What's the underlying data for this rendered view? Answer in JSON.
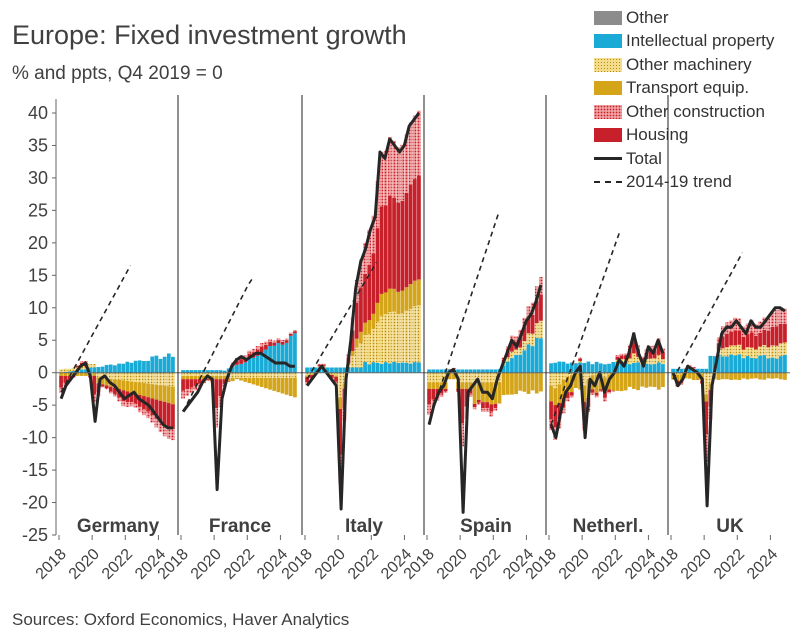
{
  "chart_data": {
    "type": "bar",
    "title": "Europe: Fixed investment growth",
    "subtitle": "% and ppts, Q4 2019 = 0",
    "source": "Sources: Oxford Economics, Haver Analytics",
    "ylim": [
      -25,
      40
    ],
    "yticks": [
      40,
      35,
      30,
      25,
      20,
      15,
      10,
      5,
      0,
      -5,
      -10,
      -15,
      -20,
      -25
    ],
    "xticks": [
      "2018",
      "2020",
      "2022",
      "2024"
    ],
    "legend": [
      {
        "name": "Other",
        "color": "#8c8c8c",
        "style": "solid"
      },
      {
        "name": "Intellectual property",
        "color": "#1aaad6",
        "style": "solid"
      },
      {
        "name": "Other machinery",
        "color": "#e4b52a",
        "style": "dotted"
      },
      {
        "name": "Transport equip.",
        "color": "#d4a419",
        "style": "solid"
      },
      {
        "name": "Other construction",
        "color": "#c8202a",
        "style": "dotted"
      },
      {
        "name": "Housing",
        "color": "#c8202a",
        "style": "solid"
      },
      {
        "name": "Total",
        "color": "#262626",
        "style": "line"
      },
      {
        "name": "2014-19 trend",
        "color": "#262626",
        "style": "dashed"
      }
    ],
    "panels": [
      {
        "name": "Germany",
        "total": [
          -4,
          -2,
          -1,
          0,
          1,
          1.5,
          -0.5,
          -7.5,
          -1,
          -0.5,
          -1.5,
          -2,
          -3,
          -4,
          -3.5,
          -3,
          -4,
          -4.5,
          -5,
          -6,
          -7,
          -8,
          -8.5,
          -8.5
        ],
        "trend": [
          -3,
          -1.7,
          -0.4,
          0.9,
          2.2,
          3.5,
          4.8,
          6.1,
          7.4,
          8.7,
          10,
          11.3,
          12.6,
          13.9,
          15.2,
          16.5
        ]
      },
      {
        "name": "France",
        "total": [
          -6,
          -5,
          -4,
          -3,
          -1.5,
          -0.5,
          -1,
          -18,
          -4,
          -1,
          1,
          2,
          2.5,
          2,
          2.5,
          3,
          3,
          2.5,
          2,
          1.5,
          1.5,
          1.5,
          1,
          1
        ],
        "trend": [
          -6,
          -4.7,
          -3.4,
          -2.1,
          -0.8,
          0.5,
          1.8,
          3.1,
          4.4,
          5.7,
          7,
          8.3,
          9.6,
          10.9,
          12.2,
          13.5,
          14.5
        ]
      },
      {
        "name": "Italy",
        "total": [
          -2,
          -1,
          0,
          1,
          0,
          -1,
          -2,
          -21,
          -1,
          5,
          13,
          17,
          19,
          22,
          24,
          34,
          33,
          36,
          35,
          34,
          35,
          38,
          39,
          40
        ],
        "trend": [
          -1,
          0.2,
          1.4,
          2.6,
          3.8,
          5,
          6.2,
          7.4,
          8.6,
          9.8,
          11,
          12.2,
          13.4,
          14.6,
          15.8,
          17
        ]
      },
      {
        "name": "Spain",
        "total": [
          -8,
          -5,
          -3,
          -2,
          0,
          0.5,
          -1,
          -21.5,
          -3,
          -2,
          -1,
          -3,
          -3,
          -4,
          -1,
          1,
          3,
          5,
          4,
          6,
          8,
          9,
          11,
          13.5
        ],
        "trend": [
          -8,
          -5.5,
          -3.5,
          -1.5,
          0.5,
          2.5,
          4.5,
          6.5,
          8.5,
          10.5,
          12.5,
          14.5,
          16.5,
          18.5,
          20.5,
          22.5,
          24.5
        ]
      },
      {
        "name": "Netherl.",
        "total": [
          -8,
          -10,
          -6,
          -3,
          -2,
          0,
          1,
          -10,
          -1,
          -2,
          0,
          -3,
          -1,
          0,
          2,
          1,
          3,
          6,
          3,
          1,
          4,
          3,
          5,
          3
        ],
        "trend": [
          -8,
          -5.5,
          -3,
          -0.5,
          2,
          4.5,
          7,
          9.5,
          12,
          14.5,
          17,
          19.5,
          22
        ]
      },
      {
        "name": "UK",
        "total": [
          0,
          -2,
          -1,
          1,
          0.5,
          0,
          -1,
          -20.5,
          -2,
          2,
          6,
          7,
          7,
          8,
          7,
          6,
          8,
          7,
          7,
          8,
          9,
          10,
          10,
          9.5
        ],
        "trend": [
          -1,
          0.3,
          1.6,
          2.9,
          4.2,
          5.5,
          6.8,
          8.1,
          9.4,
          10.7,
          12,
          13.3,
          14.6,
          15.9,
          17.2,
          18.5
        ]
      }
    ]
  }
}
